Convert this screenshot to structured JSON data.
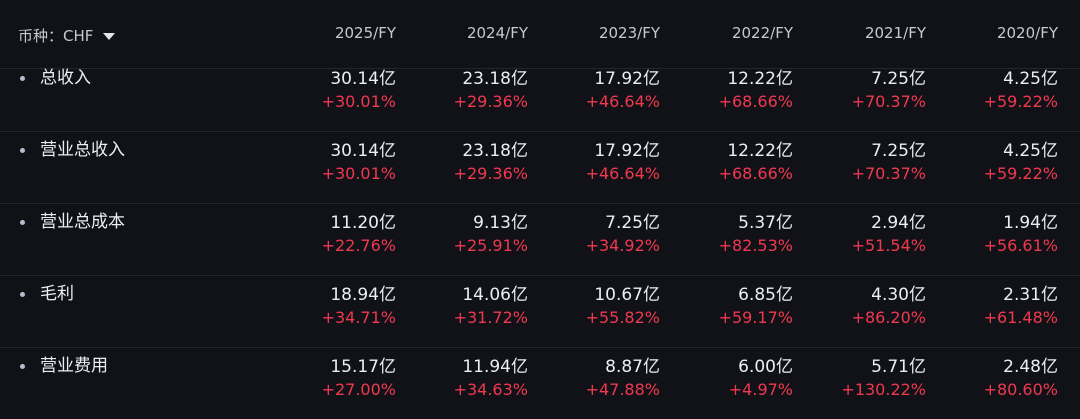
{
  "currency": {
    "label": "币种：CHF"
  },
  "columns": [
    "2025/FY",
    "2024/FY",
    "2023/FY",
    "2022/FY",
    "2021/FY",
    "2020/FY"
  ],
  "rows": [
    {
      "label": "总收入",
      "values": [
        "30.14亿",
        "23.18亿",
        "17.92亿",
        "12.22亿",
        "7.25亿",
        "4.25亿"
      ],
      "growth": [
        "+30.01%",
        "+29.36%",
        "+46.64%",
        "+68.66%",
        "+70.37%",
        "+59.22%"
      ]
    },
    {
      "label": "营业总收入",
      "values": [
        "30.14亿",
        "23.18亿",
        "17.92亿",
        "12.22亿",
        "7.25亿",
        "4.25亿"
      ],
      "growth": [
        "+30.01%",
        "+29.36%",
        "+46.64%",
        "+68.66%",
        "+70.37%",
        "+59.22%"
      ]
    },
    {
      "label": "营业总成本",
      "values": [
        "11.20亿",
        "9.13亿",
        "7.25亿",
        "5.37亿",
        "2.94亿",
        "1.94亿"
      ],
      "growth": [
        "+22.76%",
        "+25.91%",
        "+34.92%",
        "+82.53%",
        "+51.54%",
        "+56.61%"
      ]
    },
    {
      "label": "毛利",
      "values": [
        "18.94亿",
        "14.06亿",
        "10.67亿",
        "6.85亿",
        "4.30亿",
        "2.31亿"
      ],
      "growth": [
        "+34.71%",
        "+31.72%",
        "+55.82%",
        "+59.17%",
        "+86.20%",
        "+61.48%"
      ]
    },
    {
      "label": "营业费用",
      "values": [
        "15.17亿",
        "11.94亿",
        "8.87亿",
        "6.00亿",
        "5.71亿",
        "2.48亿"
      ],
      "growth": [
        "+27.00%",
        "+34.63%",
        "+47.88%",
        "+4.97%",
        "+130.22%",
        "+80.60%"
      ]
    }
  ],
  "colors": {
    "background": "#111217",
    "text": "#eceef3",
    "muted_text": "#c7c9d1",
    "growth": "#f0384f",
    "divider": "#24262e",
    "bullet": "#b9bdd0"
  }
}
